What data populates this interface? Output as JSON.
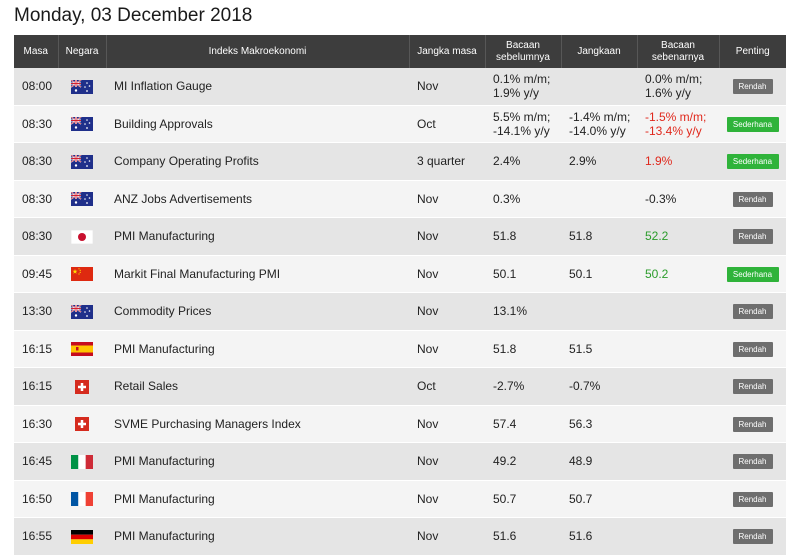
{
  "page": {
    "title": "Monday, 03 December 2018"
  },
  "table": {
    "headers": {
      "time": "Masa",
      "country": "Negara",
      "indicator": "Indeks Makroekonomi",
      "period": "Jangka masa",
      "previous": "Bacaan sebelumnya",
      "forecast": "Jangkaan",
      "actual": "Bacaan sebenarnya",
      "importance": "Penting"
    },
    "rows": [
      {
        "time": "08:00",
        "flag": "australia-flag-icon",
        "indicator": "MI Inflation Gauge",
        "period": "Nov",
        "previous_1": "0.1% m/m;",
        "previous_2": "1.9% y/y",
        "forecast_1": "",
        "forecast_2": "",
        "actual_1": "0.0% m/m;",
        "actual_2": "1.6% y/y",
        "actual_color": "#222222",
        "importance": "Rendah",
        "importance_level": "low"
      },
      {
        "time": "08:30",
        "flag": "australia-flag-icon",
        "indicator": "Building Approvals",
        "period": "Oct",
        "previous_1": "5.5% m/m;",
        "previous_2": "-14.1% y/y",
        "forecast_1": "-1.4% m/m;",
        "forecast_2": "-14.0% y/y",
        "actual_1": "-1.5% m/m;",
        "actual_2": "-13.4% y/y",
        "actual_color": "#e0281c",
        "importance": "Sederhana",
        "importance_level": "moderate"
      },
      {
        "time": "08:30",
        "flag": "australia-flag-icon",
        "indicator": "Company Operating Profits",
        "period": "3 quarter",
        "previous_1": "2.4%",
        "previous_2": "",
        "forecast_1": "2.9%",
        "forecast_2": "",
        "actual_1": "1.9%",
        "actual_2": "",
        "actual_color": "#e0281c",
        "importance": "Sederhana",
        "importance_level": "moderate"
      },
      {
        "time": "08:30",
        "flag": "australia-flag-icon",
        "indicator": "ANZ Jobs Advertisements",
        "period": "Nov",
        "previous_1": "0.3%",
        "previous_2": "",
        "forecast_1": "",
        "forecast_2": "",
        "actual_1": "-0.3%",
        "actual_2": "",
        "actual_color": "#222222",
        "importance": "Rendah",
        "importance_level": "low"
      },
      {
        "time": "08:30",
        "flag": "japan-flag-icon",
        "indicator": "PMI Manufacturing",
        "period": "Nov",
        "previous_1": "51.8",
        "previous_2": "",
        "forecast_1": "51.8",
        "forecast_2": "",
        "actual_1": "52.2",
        "actual_2": "",
        "actual_color": "#2b9c2b",
        "importance": "Rendah",
        "importance_level": "low"
      },
      {
        "time": "09:45",
        "flag": "china-flag-icon",
        "indicator": "Markit Final Manufacturing PMI",
        "period": "Nov",
        "previous_1": "50.1",
        "previous_2": "",
        "forecast_1": "50.1",
        "forecast_2": "",
        "actual_1": "50.2",
        "actual_2": "",
        "actual_color": "#2b9c2b",
        "importance": "Sederhana",
        "importance_level": "moderate"
      },
      {
        "time": "13:30",
        "flag": "australia-flag-icon",
        "indicator": "Commodity Prices",
        "period": "Nov",
        "previous_1": "13.1%",
        "previous_2": "",
        "forecast_1": "",
        "forecast_2": "",
        "actual_1": "",
        "actual_2": "",
        "actual_color": "#222222",
        "importance": "Rendah",
        "importance_level": "low"
      },
      {
        "time": "16:15",
        "flag": "spain-flag-icon",
        "indicator": "PMI Manufacturing",
        "period": "Nov",
        "previous_1": "51.8",
        "previous_2": "",
        "forecast_1": "51.5",
        "forecast_2": "",
        "actual_1": "",
        "actual_2": "",
        "actual_color": "#222222",
        "importance": "Rendah",
        "importance_level": "low"
      },
      {
        "time": "16:15",
        "flag": "switzerland-flag-icon",
        "indicator": "Retail Sales",
        "period": "Oct",
        "previous_1": "-2.7%",
        "previous_2": "",
        "forecast_1": "-0.7%",
        "forecast_2": "",
        "actual_1": "",
        "actual_2": "",
        "actual_color": "#222222",
        "importance": "Rendah",
        "importance_level": "low"
      },
      {
        "time": "16:30",
        "flag": "switzerland-flag-icon",
        "indicator": "SVME Purchasing Managers Index",
        "period": "Nov",
        "previous_1": "57.4",
        "previous_2": "",
        "forecast_1": "56.3",
        "forecast_2": "",
        "actual_1": "",
        "actual_2": "",
        "actual_color": "#222222",
        "importance": "Rendah",
        "importance_level": "low"
      },
      {
        "time": "16:45",
        "flag": "italy-flag-icon",
        "indicator": "PMI Manufacturing",
        "period": "Nov",
        "previous_1": "49.2",
        "previous_2": "",
        "forecast_1": "48.9",
        "forecast_2": "",
        "actual_1": "",
        "actual_2": "",
        "actual_color": "#222222",
        "importance": "Rendah",
        "importance_level": "low"
      },
      {
        "time": "16:50",
        "flag": "france-flag-icon",
        "indicator": "PMI Manufacturing",
        "period": "Nov",
        "previous_1": "50.7",
        "previous_2": "",
        "forecast_1": "50.7",
        "forecast_2": "",
        "actual_1": "",
        "actual_2": "",
        "actual_color": "#222222",
        "importance": "Rendah",
        "importance_level": "low"
      },
      {
        "time": "16:55",
        "flag": "germany-flag-icon",
        "indicator": "PMI Manufacturing",
        "period": "Nov",
        "previous_1": "51.6",
        "previous_2": "",
        "forecast_1": "51.6",
        "forecast_2": "",
        "actual_1": "",
        "actual_2": "",
        "actual_color": "#222222",
        "importance": "Rendah",
        "importance_level": "low"
      }
    ]
  },
  "colors": {
    "header_bg": "#3d3d3d",
    "row_odd": "#e5e5e5",
    "row_even": "#f4f4f4",
    "negative": "#e0281c",
    "positive": "#2b9c2b",
    "badge_low": "#6e6e6e",
    "badge_moderate": "#2fb33a"
  }
}
